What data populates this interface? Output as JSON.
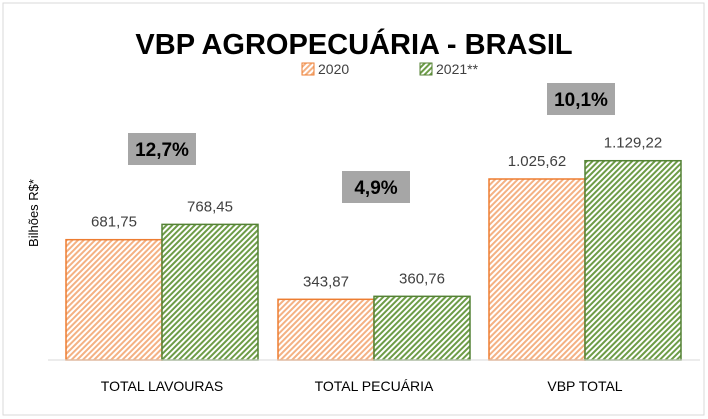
{
  "chart_data": {
    "type": "bar",
    "title": "VBP AGROPECUÁRIA - BRASIL",
    "xlabel": "",
    "ylabel": "Bilhões R$*",
    "categories": [
      "TOTAL LAVOURAS",
      "TOTAL PECUÁRIA",
      "VBP TOTAL"
    ],
    "series": [
      {
        "name": "2020",
        "values": [
          681.75,
          343.87,
          1025.62
        ],
        "labels": [
          "681,75",
          "343,87",
          "1.025,62"
        ],
        "color": "#f4b183",
        "stroke": "#ed7d31"
      },
      {
        "name": "2021**",
        "values": [
          768.45,
          360.76,
          1129.22
        ],
        "labels": [
          "768,45",
          "360,76",
          "1.129,22"
        ],
        "color": "#a9d18e",
        "stroke": "#548235"
      }
    ],
    "growth": [
      "12,7%",
      "4,9%",
      "10,1%"
    ],
    "ylim": [
      0,
      1150
    ],
    "grid": false,
    "legend_position": "top-center"
  }
}
